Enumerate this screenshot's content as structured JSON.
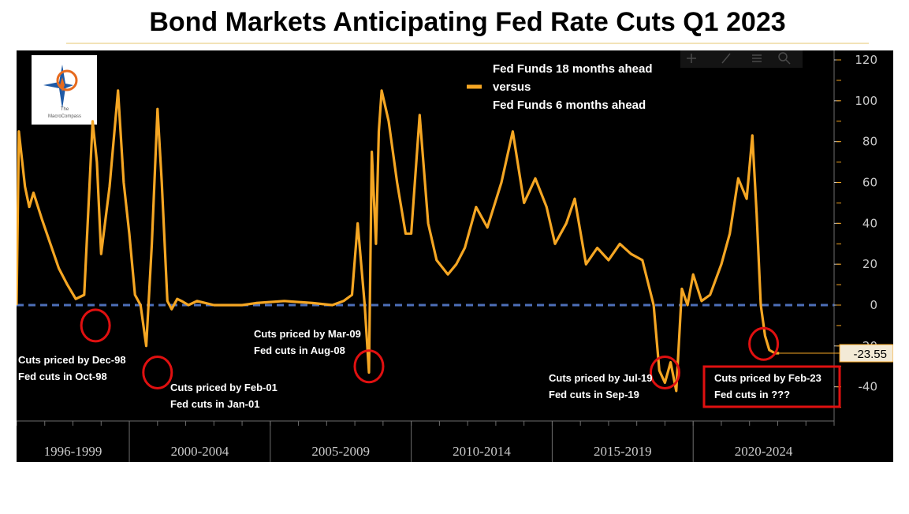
{
  "title": "Bond Markets Anticipating Fed Rate Cuts Q1 2023",
  "logo": {
    "text_top": "The",
    "text_bottom": "MacroCompass",
    "icon": "compass-star-icon"
  },
  "toolbar_icons": [
    "crosshair-icon",
    "draw-icon",
    "menu-icon",
    "search-icon"
  ],
  "colors": {
    "line": "#f5a623",
    "zero_line": "#4d6fb8",
    "circle": "#e01010",
    "background": "#000000",
    "tick": "#c9c9c9"
  },
  "chart_data": {
    "type": "line",
    "title": "Bond Markets Anticipating Fed Rate Cuts Q1 2023",
    "series": [
      {
        "name": "Fed Funds 18 months ahead versus Fed Funds 6 months ahead",
        "x": [
          1996.0,
          1996.08,
          1996.3,
          1996.45,
          1996.6,
          1996.9,
          1997.2,
          1997.5,
          1997.8,
          1998.1,
          1998.4,
          1998.7,
          1998.85,
          1999.0,
          1999.3,
          1999.6,
          1999.8,
          2000.0,
          2000.2,
          2000.4,
          2000.6,
          2000.8,
          2001.0,
          2001.15,
          2001.35,
          2001.5,
          2001.7,
          2001.85,
          2002.1,
          2002.4,
          2003.0,
          2004.0,
          2004.5,
          2005.5,
          2006.5,
          2007.2,
          2007.6,
          2007.9,
          2008.1,
          2008.35,
          2008.5,
          2008.6,
          2008.75,
          2008.85,
          2008.95,
          2009.2,
          2009.5,
          2009.8,
          2010.0,
          2010.3,
          2010.6,
          2010.9,
          2011.3,
          2011.6,
          2011.9,
          2012.3,
          2012.7,
          2013.2,
          2013.6,
          2014.0,
          2014.4,
          2014.8,
          2015.1,
          2015.5,
          2015.8,
          2016.2,
          2016.6,
          2017.0,
          2017.4,
          2017.8,
          2018.2,
          2018.6,
          2018.8,
          2019.0,
          2019.2,
          2019.4,
          2019.6,
          2019.8,
          2020.0,
          2020.3,
          2020.6,
          2021.0,
          2021.3,
          2021.6,
          2021.9,
          2022.1,
          2022.25,
          2022.4,
          2022.55,
          2022.7,
          2022.9,
          2023.05
        ],
        "values": [
          0,
          85,
          58,
          48,
          55,
          42,
          30,
          18,
          10,
          3,
          5,
          90,
          70,
          25,
          58,
          105,
          60,
          35,
          5,
          0,
          -20,
          30,
          96,
          60,
          2,
          -2,
          3,
          2,
          0,
          2,
          0,
          0,
          1,
          2,
          1,
          0,
          2,
          5,
          40,
          0,
          -33,
          75,
          30,
          85,
          105,
          90,
          60,
          35,
          35,
          93,
          40,
          22,
          15,
          20,
          28,
          48,
          38,
          60,
          85,
          50,
          62,
          48,
          30,
          40,
          52,
          20,
          28,
          22,
          30,
          25,
          22,
          0,
          -32,
          -38,
          -28,
          -42,
          8,
          0,
          15,
          2,
          5,
          20,
          35,
          62,
          52,
          83,
          45,
          0,
          -15,
          -22,
          -23.55,
          -23.55
        ],
        "last_value_label": "-23.55"
      }
    ],
    "x_categories": [
      "1996-1999",
      "2000-2004",
      "2005-2009",
      "2010-2014",
      "2015-2019",
      "2020-2024"
    ],
    "xlim": [
      1996,
      2025
    ],
    "ylim": [
      -55,
      125
    ],
    "y_ticks": [
      "120",
      "100",
      "80",
      "60",
      "40",
      "20",
      "0",
      "-20",
      "-40"
    ],
    "y_tick_values": [
      120,
      100,
      80,
      60,
      40,
      20,
      0,
      -20,
      -40
    ],
    "zero_line": true,
    "legend": {
      "position": "top-center",
      "lines": [
        "Fed Funds 18 months ahead",
        "versus",
        "Fed Funds 6 months ahead"
      ]
    },
    "annotations": [
      {
        "x": 1998.8,
        "y": -10,
        "lines": [
          "Cuts priced by Dec-98",
          "Fed cuts in Oct-98"
        ]
      },
      {
        "x": 2001.0,
        "y": -33,
        "lines": [
          "Cuts priced by Feb-01",
          "Fed cuts in Jan-01"
        ]
      },
      {
        "x": 2008.5,
        "y": -30,
        "lines": [
          "Cuts priced by Mar-09",
          "Fed cuts in Aug-08"
        ]
      },
      {
        "x": 2019.0,
        "y": -33,
        "lines": [
          "Cuts priced by Jul-19",
          "Fed cuts in Sep-19"
        ]
      },
      {
        "x": 2022.5,
        "y": -19,
        "lines": [
          "Cuts priced by Feb-23",
          "Fed cuts in ???"
        ]
      }
    ]
  }
}
